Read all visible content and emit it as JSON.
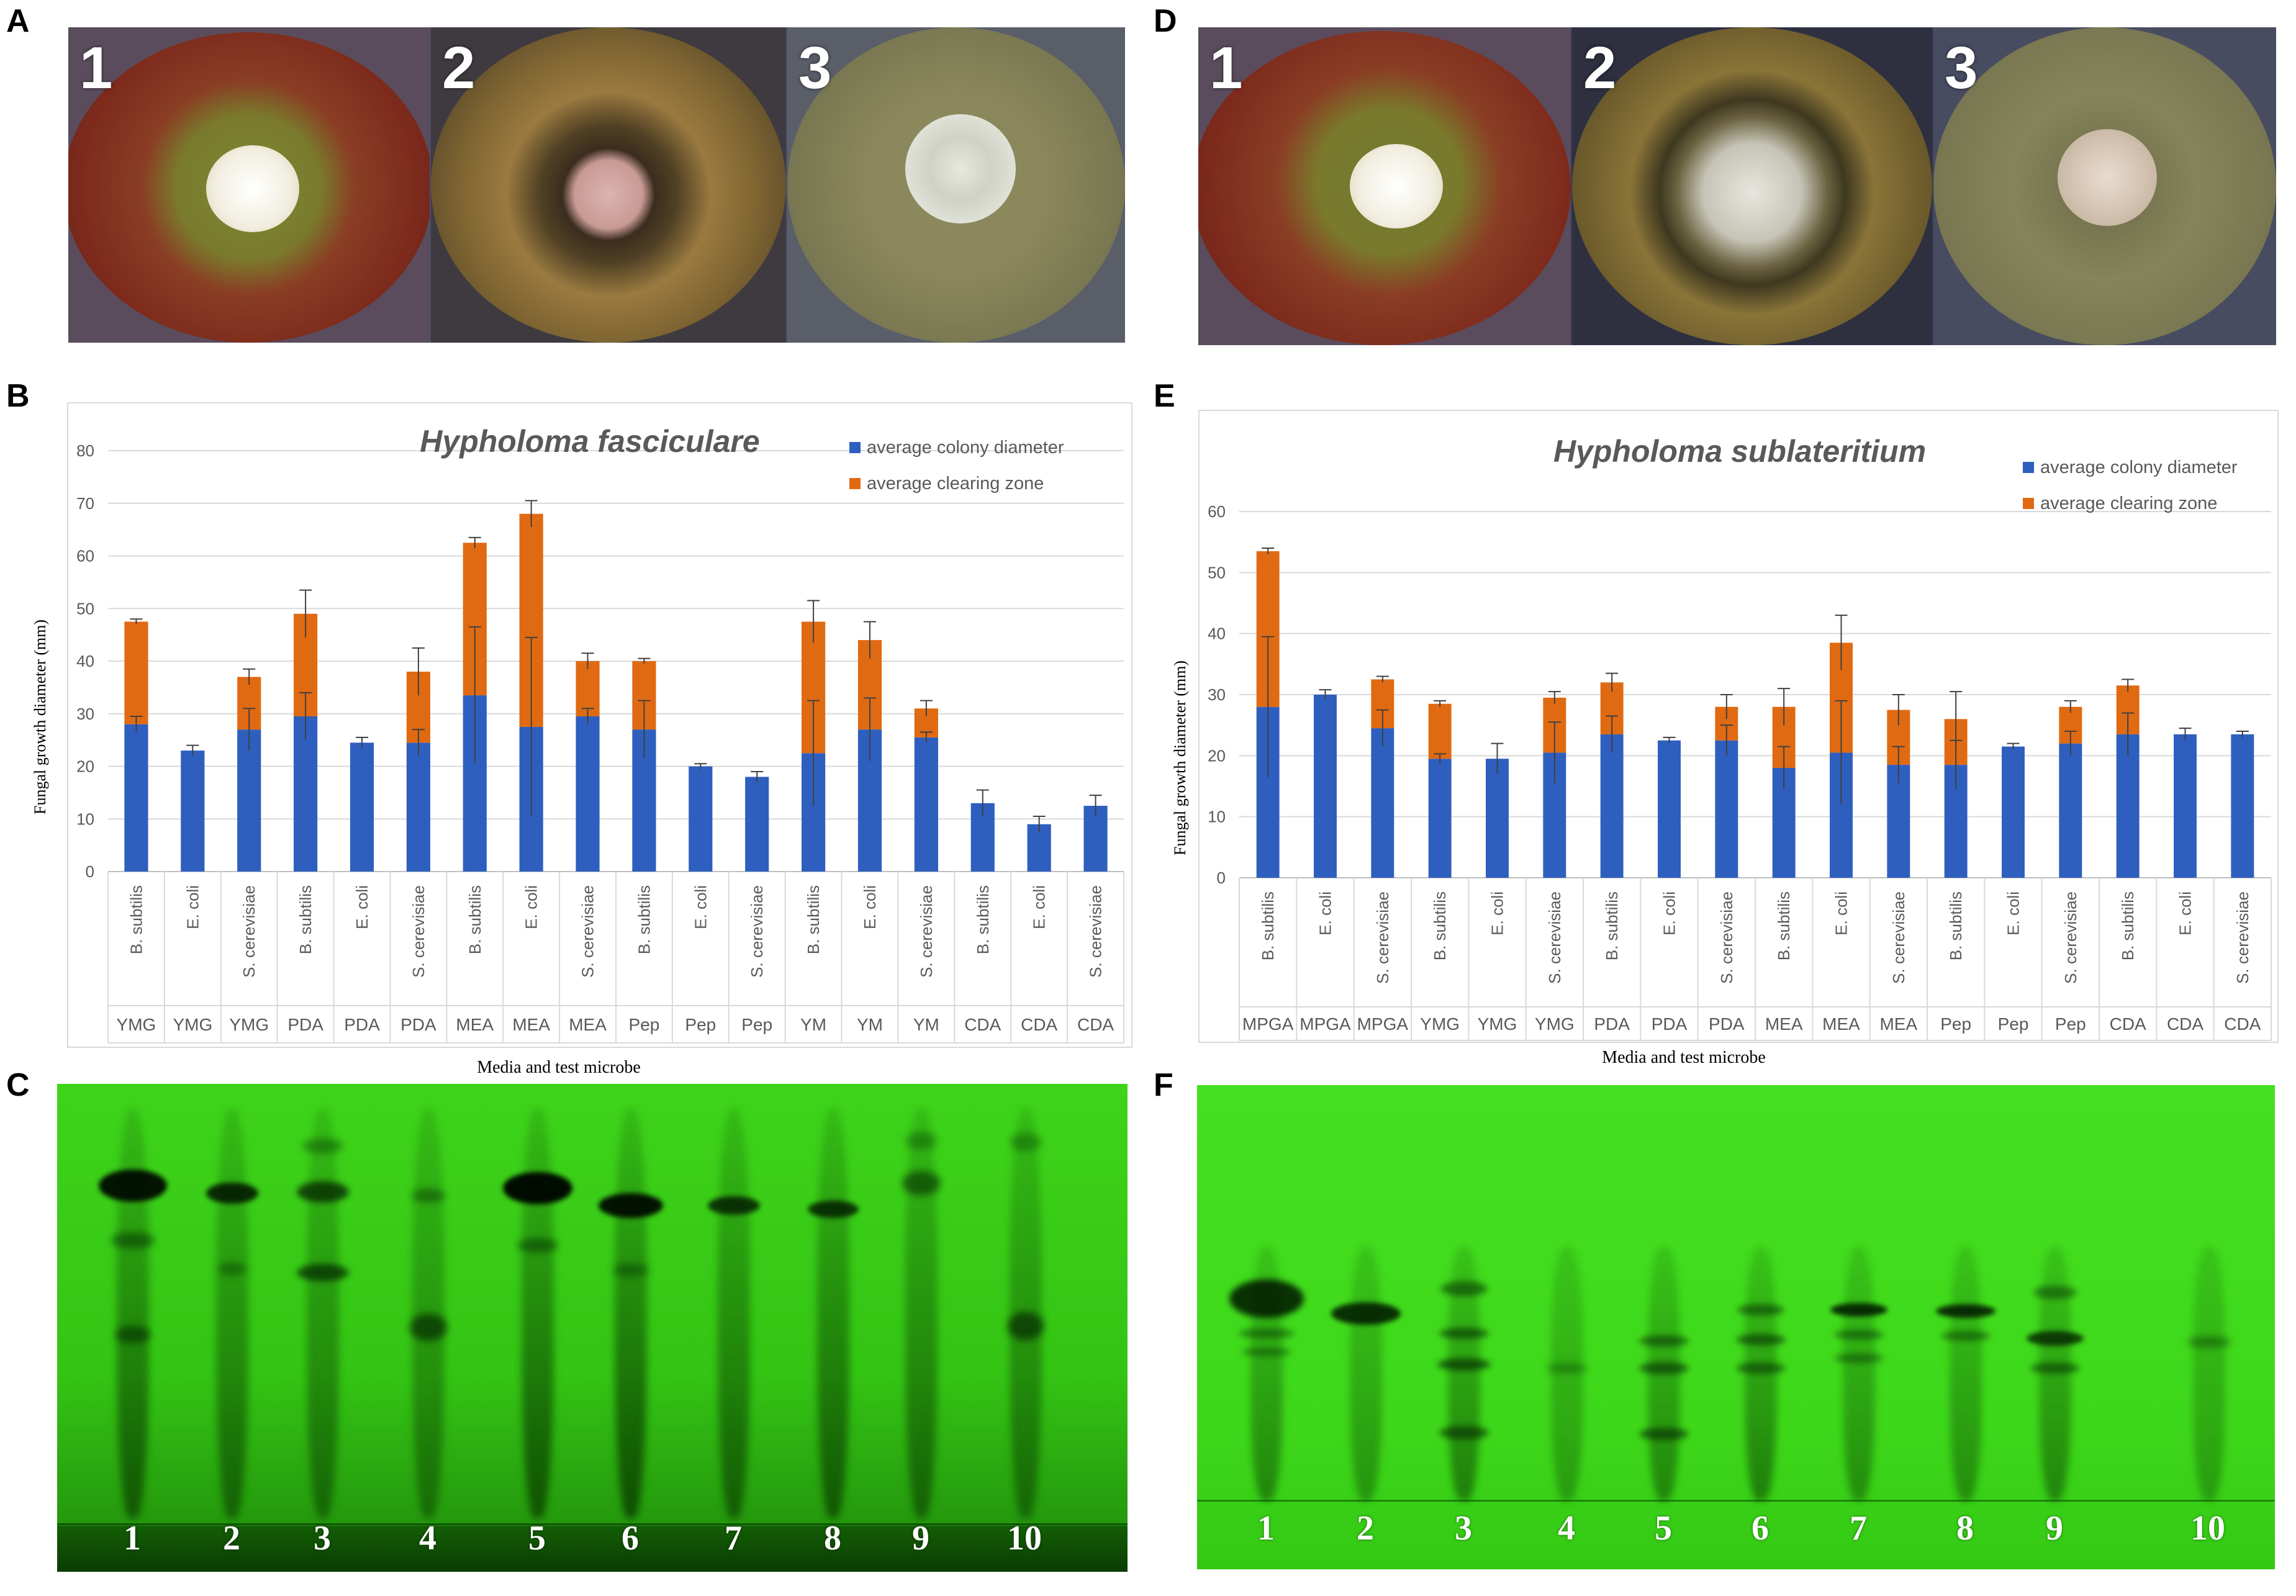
{
  "panels": {
    "A": "A",
    "B": "B",
    "C": "C",
    "D": "D",
    "E": "E",
    "F": "F"
  },
  "plates_A": [
    "1",
    "2",
    "3"
  ],
  "plates_D": [
    "1",
    "2",
    "3"
  ],
  "tlc_C_lanes": [
    "1",
    "2",
    "3",
    "4",
    "5",
    "6",
    "7",
    "8",
    "9",
    "10"
  ],
  "tlc_F_lanes": [
    "1",
    "2",
    "3",
    "4",
    "5",
    "6",
    "7",
    "8",
    "9",
    "10"
  ],
  "colors": {
    "colony": "#2e5fbf",
    "clearing": "#e06a12",
    "tlc_green": "#39d41a"
  },
  "chart_data": [
    {
      "type": "bar",
      "stacked": true,
      "title": "Hypholoma fasciculare",
      "ylabel": "Fungal growth diameter (mm)",
      "xlabel": "Media and test microbe",
      "ylim": [
        0,
        80
      ],
      "yticks": [
        0,
        10,
        20,
        30,
        40,
        50,
        60,
        70,
        80
      ],
      "legend_position": "top-right",
      "microbes": [
        "B. subtilis",
        "E. coli",
        "S. cerevisiae",
        "B. subtilis",
        "E. coli",
        "S. cerevisiae",
        "B. subtilis",
        "E. coli",
        "S. cerevisiae",
        "B. subtilis",
        "E. coli",
        "S. cerevisiae",
        "B. subtilis",
        "E. coli",
        "S. cerevisiae",
        "B. subtilis",
        "E. coli",
        "S. cerevisiae"
      ],
      "media": [
        "YMG",
        "YMG",
        "YMG",
        "PDA",
        "PDA",
        "PDA",
        "MEA",
        "MEA",
        "MEA",
        "Pep",
        "Pep",
        "Pep",
        "YM",
        "YM",
        "YM",
        "CDA",
        "CDA",
        "CDA"
      ],
      "series": [
        {
          "name": "average colony diameter",
          "values": [
            28,
            23,
            27,
            29.5,
            24.5,
            24.5,
            33.5,
            27.5,
            29.5,
            27,
            20,
            18,
            22.5,
            27,
            25.5,
            13,
            9,
            12.5
          ],
          "errors": [
            1.5,
            1,
            4,
            4.5,
            1,
            2.5,
            13,
            17,
            1.5,
            5.5,
            0.5,
            1,
            10,
            6,
            1,
            2.5,
            1.5,
            2
          ]
        },
        {
          "name": "average clearing zone",
          "values": [
            19.5,
            0,
            10,
            19.5,
            0,
            13.5,
            29,
            40.5,
            10.5,
            13,
            0,
            0,
            25,
            17,
            5.5,
            0,
            0,
            0
          ],
          "errors": [
            0.5,
            0,
            1.5,
            4.5,
            0,
            4.5,
            1,
            2.5,
            1.5,
            0.5,
            0,
            0,
            4,
            3.5,
            1.5,
            0,
            0,
            0
          ]
        }
      ]
    },
    {
      "type": "bar",
      "stacked": true,
      "title": "Hypholoma sublateritium",
      "ylabel": "Fungal growth diameter (mm)",
      "xlabel": "Media and test microbe",
      "ylim": [
        0,
        60
      ],
      "yticks": [
        0,
        10,
        20,
        30,
        40,
        50,
        60
      ],
      "legend_position": "top-right",
      "microbes": [
        "B. subtilis",
        "E. coli",
        "S. cerevisiae",
        "B. subtilis",
        "E. coli",
        "S. cerevisiae",
        "B. subtilis",
        "E. coli",
        "S. cerevisiae",
        "B. subtilis",
        "E. coli",
        "S. cerevisiae",
        "B. subtilis",
        "E. coli",
        "S. cerevisiae",
        "B. subtilis",
        "E. coli",
        "S. cerevisiae"
      ],
      "media": [
        "MPGA",
        "MPGA",
        "MPGA",
        "YMG",
        "YMG",
        "YMG",
        "PDA",
        "PDA",
        "PDA",
        "MEA",
        "MEA",
        "MEA",
        "Pep",
        "Pep",
        "Pep",
        "CDA",
        "CDA",
        "CDA"
      ],
      "series": [
        {
          "name": "average colony diameter",
          "values": [
            28,
            30,
            24.5,
            19.5,
            19.5,
            20.5,
            23.5,
            22.5,
            22.5,
            18,
            20.5,
            18.5,
            18.5,
            21.5,
            22,
            23.5,
            23.5,
            23.5
          ],
          "errors": [
            11.5,
            0.8,
            3,
            0.8,
            2.5,
            5,
            3,
            0.5,
            2.5,
            3.5,
            8.5,
            3,
            4,
            0.5,
            2,
            3.5,
            1,
            0.5
          ]
        },
        {
          "name": "average clearing zone",
          "values": [
            25.5,
            0,
            8,
            9,
            0,
            9,
            8.5,
            0,
            5.5,
            10,
            18,
            9,
            7.5,
            0,
            6,
            8,
            0,
            0
          ],
          "errors": [
            0.5,
            0,
            0.5,
            0.5,
            0,
            1,
            1.5,
            0,
            2,
            3,
            4.5,
            2.5,
            4.5,
            0,
            1,
            1,
            1,
            0
          ]
        }
      ]
    }
  ]
}
